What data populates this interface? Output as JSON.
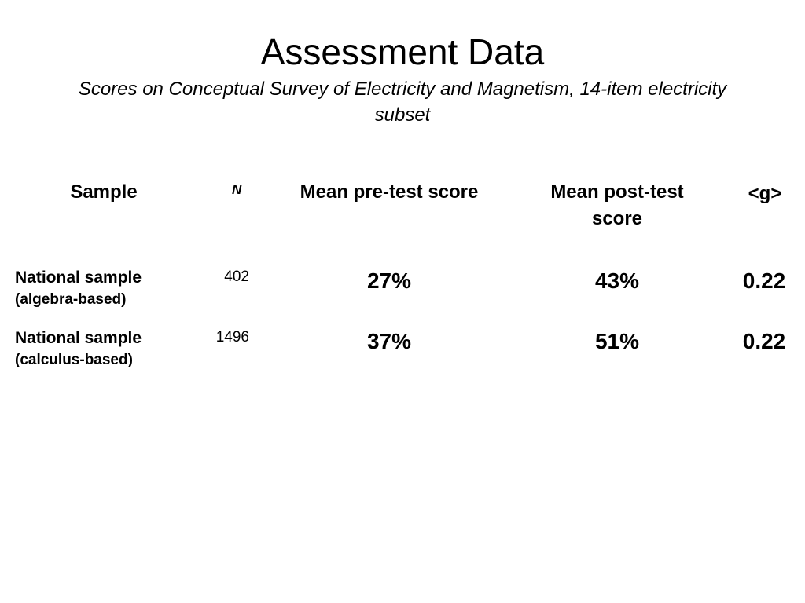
{
  "slide": {
    "title": "Assessment Data",
    "subtitle": "Scores on Conceptual Survey of Electricity and Magnetism, 14-item electricity subset"
  },
  "table": {
    "headers": {
      "sample": "Sample",
      "n": "N",
      "pre": "Mean pre-test score",
      "post": "Mean post-test score",
      "g": "<g>"
    },
    "rows": [
      {
        "sample_line1": "National sample",
        "sample_line2": "(algebra-based)",
        "n": "402",
        "pre": "27%",
        "post": "43%",
        "g": "0.22"
      },
      {
        "sample_line1": "National sample",
        "sample_line2": "(calculus-based)",
        "n": "1496",
        "pre": "37%",
        "post": "51%",
        "g": "0.22"
      }
    ]
  }
}
